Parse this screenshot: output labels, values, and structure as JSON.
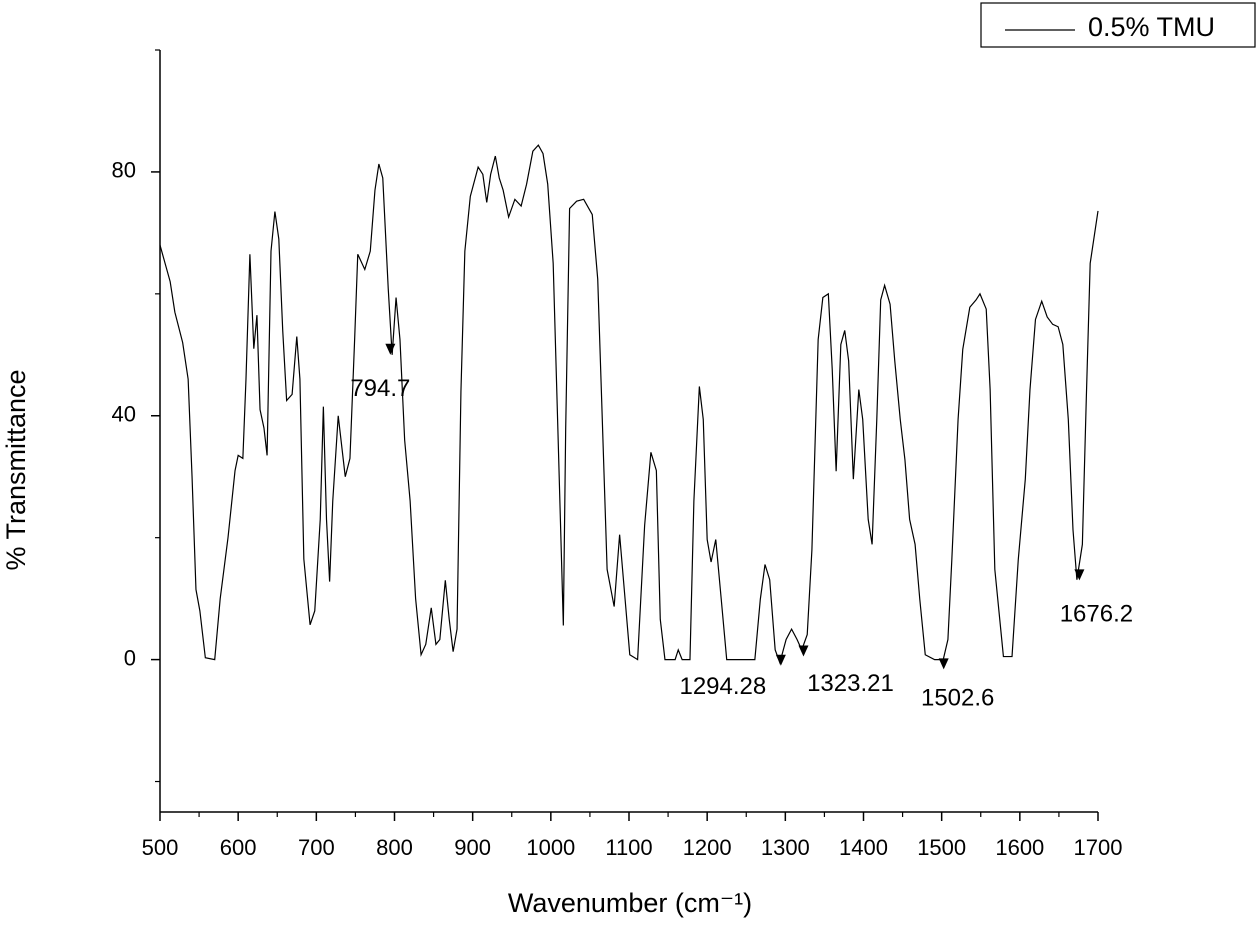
{
  "chart_data": {
    "type": "line",
    "xlabel": "Wavenumber (cm⁻¹)",
    "ylabel": "% Transmittance",
    "xlim": [
      500,
      1700
    ],
    "ylim": [
      -25,
      100
    ],
    "xticks": [
      500,
      600,
      700,
      800,
      900,
      1000,
      1100,
      1200,
      1300,
      1400,
      1500,
      1600,
      1700
    ],
    "yticks": [
      0,
      40,
      80
    ],
    "xminorticks": [
      550,
      650,
      750,
      850,
      950,
      1050,
      1150,
      1250,
      1350,
      1450,
      1550,
      1650
    ],
    "yminorticks": [
      -20,
      20,
      60,
      100
    ],
    "legend": "top-right",
    "x": [
      500,
      513,
      519,
      529,
      536,
      541,
      546,
      551,
      558,
      570,
      577,
      587,
      596,
      600,
      606,
      610,
      615,
      620,
      624,
      628,
      633,
      637,
      642,
      647,
      652,
      657,
      662,
      669,
      675,
      679,
      684,
      692,
      698,
      705,
      709,
      713,
      717,
      721,
      728,
      737,
      743,
      749,
      753,
      762,
      769,
      775,
      780,
      785,
      792,
      797,
      802,
      807,
      813,
      820,
      827,
      834,
      840,
      847,
      853,
      858,
      865,
      870,
      875,
      880,
      885,
      890,
      897,
      907,
      913,
      918,
      923,
      929,
      934,
      939,
      946,
      954,
      962,
      969,
      977,
      984,
      990,
      996,
      1003,
      1009,
      1016,
      1019,
      1024,
      1033,
      1042,
      1053,
      1060,
      1065,
      1072,
      1081,
      1088,
      1095,
      1101,
      1111,
      1120,
      1128,
      1135,
      1140,
      1146,
      1159,
      1163,
      1168,
      1178,
      1183,
      1190,
      1195,
      1200,
      1205,
      1211,
      1218,
      1225,
      1261,
      1268,
      1274,
      1280,
      1287,
      1293,
      1301,
      1308,
      1315,
      1321,
      1328,
      1334,
      1342,
      1348,
      1355,
      1360,
      1365,
      1371,
      1376,
      1381,
      1387,
      1394,
      1399,
      1406,
      1411,
      1417,
      1422,
      1427,
      1434,
      1440,
      1447,
      1453,
      1459,
      1466,
      1472,
      1479,
      1491,
      1502,
      1508,
      1513,
      1521,
      1527,
      1536,
      1544,
      1549,
      1557,
      1562,
      1568,
      1579,
      1590,
      1598,
      1607,
      1613,
      1620,
      1628,
      1635,
      1642,
      1649,
      1655,
      1662,
      1668,
      1673,
      1680,
      1685,
      1690,
      1700
    ],
    "series": [
      {
        "name": "0.5% TMU",
        "color": "#000000",
        "values": [
          68,
          62,
          57,
          52,
          46,
          30,
          11.5,
          8,
          0.3,
          0,
          10,
          20,
          31,
          33.5,
          33,
          46,
          66.5,
          51,
          56.5,
          41,
          38,
          33.5,
          67,
          73.5,
          69,
          54,
          42.5,
          43.5,
          53,
          46,
          16.5,
          5.7,
          8,
          23,
          41.5,
          23,
          12.8,
          26,
          40,
          30,
          33,
          52.5,
          66.5,
          64,
          67,
          77,
          81.3,
          79,
          60.8,
          50,
          59.4,
          52.5,
          36,
          26,
          10,
          0.8,
          2.5,
          8.5,
          2.5,
          3.3,
          13,
          6.6,
          1.3,
          5,
          44,
          67,
          76,
          80.8,
          79.6,
          75,
          79.6,
          82.6,
          79,
          77,
          72.6,
          75.5,
          74.4,
          78,
          83.4,
          84.4,
          83,
          78,
          65,
          37.8,
          5.6,
          37.8,
          74,
          75.2,
          75.5,
          73,
          62.4,
          42.7,
          14.8,
          8.7,
          20.5,
          9.9,
          0.8,
          0,
          22,
          34,
          31,
          6.6,
          0,
          0,
          1.6,
          0,
          0,
          26,
          44.8,
          39.4,
          19.7,
          16,
          19.7,
          9.9,
          0,
          0,
          9.9,
          15.6,
          13.1,
          1.6,
          -0.5,
          3.3,
          5,
          3.3,
          1.6,
          4.1,
          18,
          52.5,
          59.4,
          60,
          47.6,
          30.9,
          51.7,
          54,
          49,
          29.6,
          44.3,
          39.4,
          23,
          18.9,
          39.4,
          59,
          61.4,
          58.3,
          49,
          39.4,
          32.8,
          23,
          18.9,
          9.9,
          0.8,
          0,
          0,
          3.3,
          16.4,
          39.4,
          50.9,
          57.8,
          59,
          60,
          57.5,
          44.3,
          14.8,
          0.5,
          0.5,
          16.4,
          29.6,
          44.3,
          55.8,
          58.8,
          56.2,
          55,
          54.6,
          51.7,
          39.4,
          21.3,
          13.1,
          18.9,
          42.7,
          65,
          73.6
        ]
      }
    ],
    "annotations": [
      {
        "label": "794.7",
        "x": 794.7,
        "y": 50
      },
      {
        "label": "1294.28",
        "x": 1294.28,
        "y": -1
      },
      {
        "label": "1323.21",
        "x": 1323.21,
        "y": 0.5
      },
      {
        "label": "1502.6",
        "x": 1502.6,
        "y": -1.6
      },
      {
        "label": "1676.2",
        "x": 1676.2,
        "y": 13
      }
    ]
  }
}
